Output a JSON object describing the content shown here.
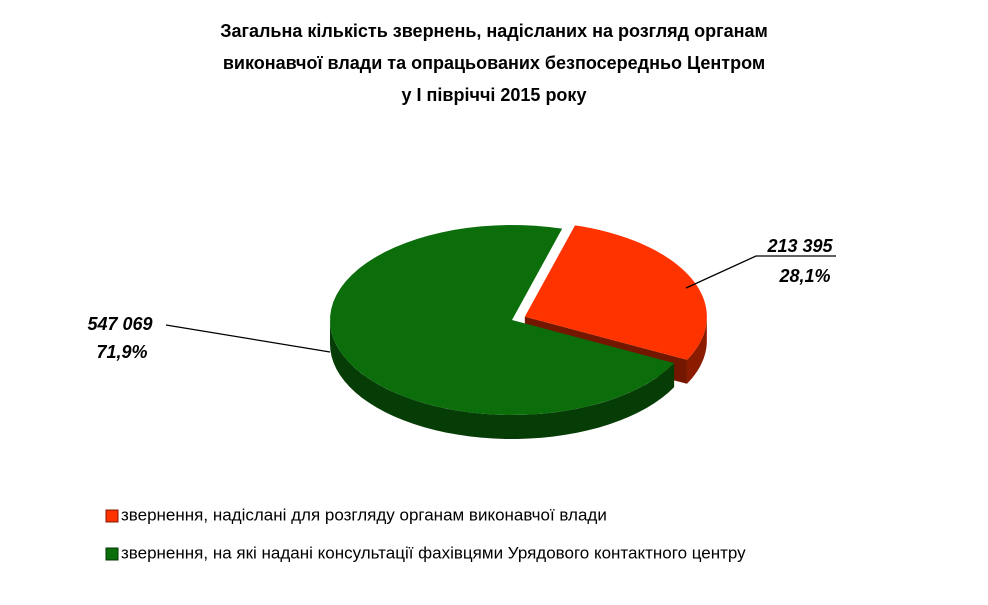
{
  "chart_data": {
    "type": "pie",
    "title": [
      "Загальна кількість звернень, надісланих на розгляд органам",
      "виконавчої влади та опрацьованих безпосередньо Центром",
      "у І півріччі 2015 року"
    ],
    "categories": [
      "звернення, надіслані для розгляду органам виконавчої влади",
      "звернення, на які надані консультації фахівцями Урядового контактного центру"
    ],
    "values": [
      213395,
      547069
    ],
    "value_labels": [
      "213 395",
      "547 069"
    ],
    "percents": [
      28.1,
      71.9
    ],
    "percent_labels": [
      "28,1%",
      "71,9%"
    ],
    "colors": [
      "#ff3300",
      "#0b6e0b"
    ],
    "legend": "bottom"
  }
}
